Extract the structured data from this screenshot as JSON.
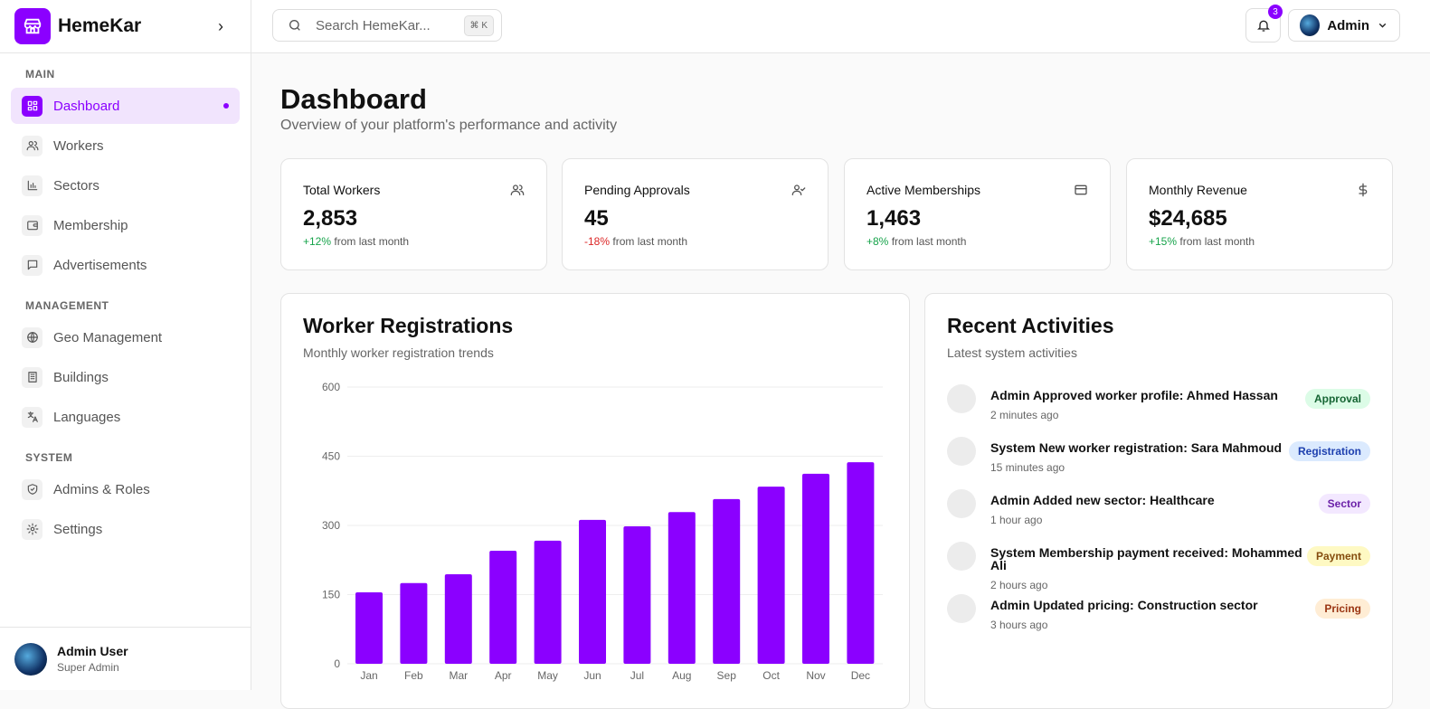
{
  "brand": {
    "name": "HemeKar"
  },
  "sidebar": {
    "sections": [
      {
        "title": "MAIN",
        "items": [
          {
            "label": "Dashboard",
            "icon": "dashboard-icon",
            "active": true
          },
          {
            "label": "Workers",
            "icon": "users-icon"
          },
          {
            "label": "Sectors",
            "icon": "bar-chart-icon"
          },
          {
            "label": "Membership",
            "icon": "wallet-icon"
          },
          {
            "label": "Advertisements",
            "icon": "message-icon"
          }
        ]
      },
      {
        "title": "MANAGEMENT",
        "items": [
          {
            "label": "Geo Management",
            "icon": "globe-icon"
          },
          {
            "label": "Buildings",
            "icon": "building-icon"
          },
          {
            "label": "Languages",
            "icon": "translate-icon"
          }
        ]
      },
      {
        "title": "SYSTEM",
        "items": [
          {
            "label": "Admins & Roles",
            "icon": "shield-icon"
          },
          {
            "label": "Settings",
            "icon": "gear-icon"
          }
        ]
      }
    ],
    "user": {
      "name": "Admin User",
      "role": "Super Admin"
    }
  },
  "header": {
    "search_placeholder": "Search HemeKar...",
    "shortcut": "⌘ K",
    "notifications": "3",
    "account": "Admin"
  },
  "page": {
    "title": "Dashboard",
    "subtitle": "Overview of your platform's performance and activity"
  },
  "stats": [
    {
      "label": "Total Workers",
      "value": "2,853",
      "change": "+12%",
      "trend": "up",
      "suffix": "from last month",
      "icon": "users-icon"
    },
    {
      "label": "Pending Approvals",
      "value": "45",
      "change": "-18%",
      "trend": "down",
      "suffix": "from last month",
      "icon": "user-check-icon"
    },
    {
      "label": "Active Memberships",
      "value": "1,463",
      "change": "+8%",
      "trend": "up",
      "suffix": "from last month",
      "icon": "credit-card-icon"
    },
    {
      "label": "Monthly Revenue",
      "value": "$24,685",
      "change": "+15%",
      "trend": "up",
      "suffix": "from last month",
      "icon": "dollar-icon"
    }
  ],
  "chart_data": {
    "type": "bar",
    "title": "Worker Registrations",
    "subtitle": "Monthly worker registration trends",
    "categories": [
      "Jan",
      "Feb",
      "Mar",
      "Apr",
      "May",
      "Jun",
      "Jul",
      "Aug",
      "Sep",
      "Oct",
      "Nov",
      "Dec"
    ],
    "values": [
      155,
      175,
      194,
      245,
      267,
      312,
      298,
      329,
      357,
      384,
      412,
      437
    ],
    "yticks": [
      0,
      150,
      300,
      450,
      600
    ],
    "ylim": [
      0,
      600
    ],
    "grid": true,
    "color": "#8b00ff"
  },
  "activities": {
    "title": "Recent Activities",
    "subtitle": "Latest system activities",
    "items": [
      {
        "actor": "Admin",
        "text": "Approved worker profile: Ahmed Hassan",
        "time": "2 minutes ago",
        "tag": "Approval",
        "bg": "#dcfce7",
        "fg": "#166534"
      },
      {
        "actor": "System",
        "text": "New worker registration: Sara Mahmoud",
        "time": "15 minutes ago",
        "tag": "Registration",
        "bg": "#dbeafe",
        "fg": "#1e40af"
      },
      {
        "actor": "Admin",
        "text": "Added new sector: Healthcare",
        "time": "1 hour ago",
        "tag": "Sector",
        "bg": "#f3e8ff",
        "fg": "#6b21a8"
      },
      {
        "actor": "System",
        "text": "Membership payment received: Mohammed Ali",
        "time": "2 hours ago",
        "tag": "Payment",
        "bg": "#fef9c3",
        "fg": "#854d0e"
      },
      {
        "actor": "Admin",
        "text": "Updated pricing: Construction sector",
        "time": "3 hours ago",
        "tag": "Pricing",
        "bg": "#ffedd5",
        "fg": "#9a3412"
      }
    ]
  }
}
